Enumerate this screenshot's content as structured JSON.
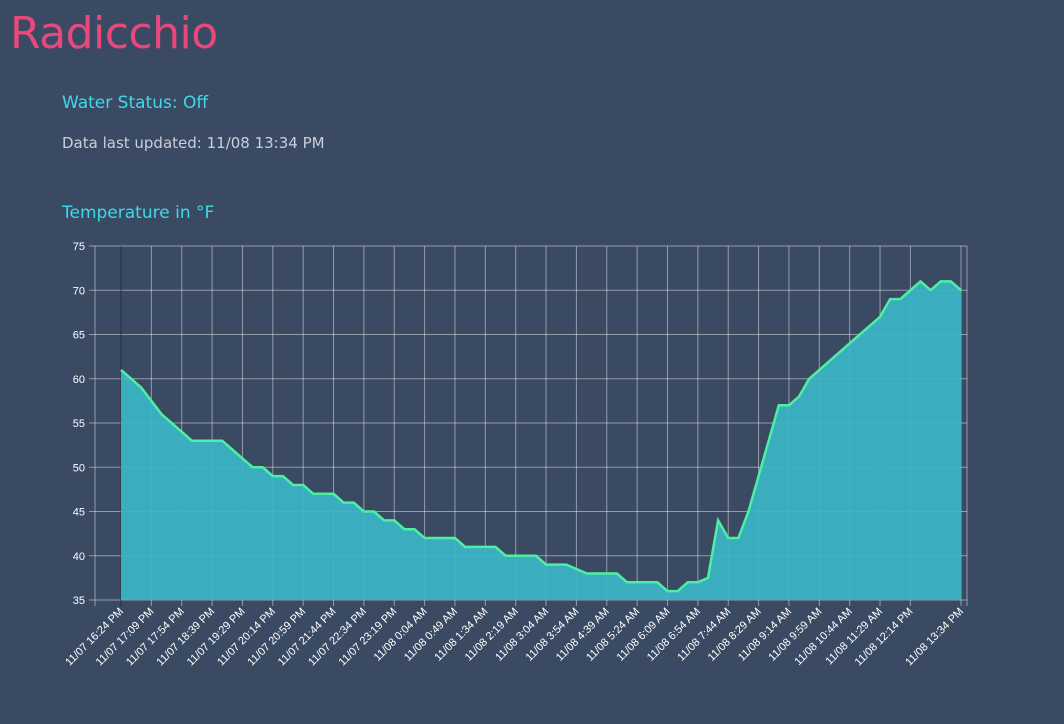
{
  "header": {
    "title": "Radicchio"
  },
  "status": {
    "water": "Water Status: Off",
    "updated": "Data last updated: 11/08 13:34 PM"
  },
  "chart_data": {
    "type": "area",
    "title": "Temperature in °F",
    "categories": [
      "11/07 16:24 PM",
      null,
      null,
      "11/07 17:09 PM",
      null,
      null,
      "11/07 17:54 PM",
      null,
      null,
      "11/07 18:39 PM",
      null,
      null,
      "11/07 19:29 PM",
      null,
      null,
      "11/07 20:14 PM",
      null,
      null,
      "11/07 20:59 PM",
      null,
      null,
      "11/07 21:44 PM",
      null,
      null,
      "11/07 22:34 PM",
      null,
      null,
      "11/07 23:19 PM",
      null,
      null,
      "11/08 0:04 AM",
      null,
      null,
      "11/08 0:49 AM",
      null,
      null,
      "11/08 1:34 AM",
      null,
      null,
      "11/08 2:19 AM",
      null,
      null,
      "11/08 3:04 AM",
      null,
      null,
      "11/08 3:54 AM",
      null,
      null,
      "11/08 4:39 AM",
      null,
      null,
      "11/08 5:24 AM",
      null,
      null,
      "11/08 6:09 AM",
      null,
      null,
      "11/08 6:54 AM",
      null,
      null,
      "11/08 7:44 AM",
      null,
      null,
      "11/08 8:29 AM",
      null,
      null,
      "11/08 9:14 AM",
      null,
      null,
      "11/08 9:59 AM",
      null,
      null,
      "11/08 10:44 AM",
      null,
      null,
      "11/08 11:29 AM",
      null,
      null,
      "11/08 12:14 PM",
      null,
      null,
      null,
      null,
      "11/08 13:34 PM"
    ],
    "series": [
      {
        "color": "#4cf0a2",
        "fill": "#3bb5c6",
        "values": [
          61,
          60,
          59,
          57.5,
          56,
          55,
          54,
          53,
          53,
          53,
          53,
          52,
          51,
          50,
          50,
          49,
          49,
          48,
          48,
          47,
          47,
          47,
          46,
          46,
          45,
          45,
          44,
          44,
          43,
          43,
          42,
          42,
          42,
          42,
          41,
          41,
          41,
          41,
          40,
          40,
          40,
          40,
          39,
          39,
          39,
          38.5,
          38,
          38,
          38,
          38,
          37,
          37,
          37,
          37,
          36,
          36,
          37,
          37,
          37.5,
          44,
          42,
          42,
          45,
          49,
          53,
          57,
          57,
          58,
          60,
          61,
          62,
          63,
          64,
          65,
          66,
          67,
          69,
          69,
          70,
          71,
          70,
          71,
          71,
          70
        ]
      }
    ],
    "ylim": [
      35,
      75
    ],
    "yticks": [
      35,
      40,
      45,
      50,
      55,
      60,
      65,
      70,
      75
    ],
    "grid": true
  }
}
